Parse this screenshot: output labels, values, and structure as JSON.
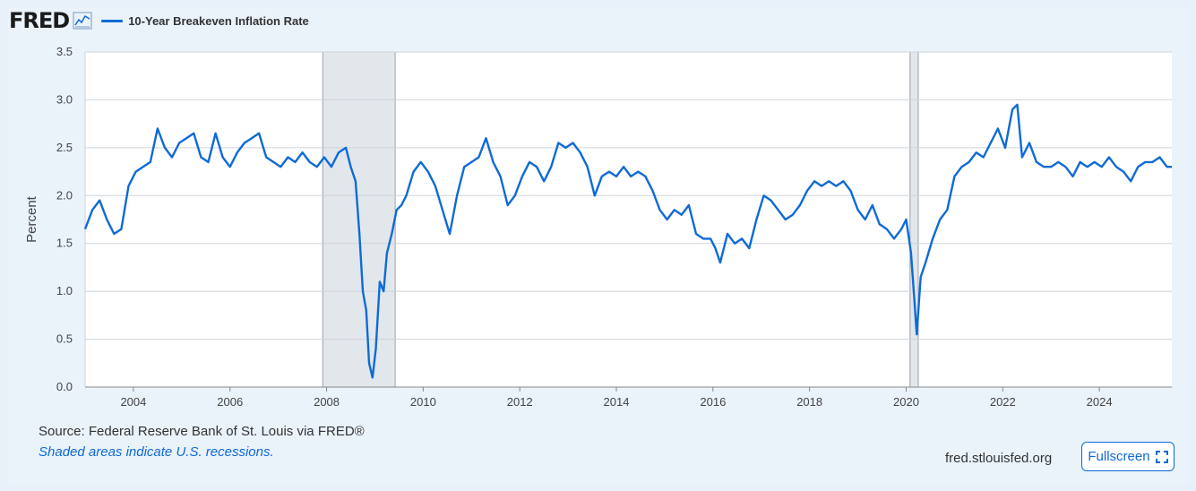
{
  "header": {
    "logo_text": "FRED",
    "legend_label": "10-Year Breakeven Inflation Rate"
  },
  "footer": {
    "source": "Source: Federal Reserve Bank of St. Louis via FRED®",
    "note": "Shaded areas indicate U.S. recessions.",
    "site": "fred.stlouisfed.org",
    "fullscreen_label": "Fullscreen"
  },
  "colors": {
    "series": "#0f6ad6",
    "recession_fill": "#e2e7ec",
    "grid": "#cfd4d8",
    "plot_bg": "#ffffff",
    "page_bg": "#e8f1f9"
  },
  "chart_data": {
    "type": "line",
    "title": "",
    "xlabel": "",
    "ylabel": "Percent",
    "xlim": [
      2003.0,
      2025.5
    ],
    "ylim": [
      0.0,
      3.5
    ],
    "x_ticks": [
      2004,
      2006,
      2008,
      2010,
      2012,
      2014,
      2016,
      2018,
      2020,
      2022,
      2024
    ],
    "y_ticks": [
      "0.0",
      "0.5",
      "1.0",
      "1.5",
      "2.0",
      "2.5",
      "3.0",
      "3.5"
    ],
    "grid": true,
    "legend_position": "top-left",
    "recessions": [
      [
        2007.92,
        2009.42
      ],
      [
        2020.08,
        2020.25
      ]
    ],
    "series": [
      {
        "name": "10-Year Breakeven Inflation Rate",
        "x": [
          2003.0,
          2003.15,
          2003.3,
          2003.45,
          2003.6,
          2003.75,
          2003.9,
          2004.05,
          2004.2,
          2004.35,
          2004.5,
          2004.65,
          2004.8,
          2004.95,
          2005.1,
          2005.25,
          2005.4,
          2005.55,
          2005.7,
          2005.85,
          2006.0,
          2006.15,
          2006.3,
          2006.45,
          2006.6,
          2006.75,
          2006.9,
          2007.05,
          2007.2,
          2007.35,
          2007.5,
          2007.65,
          2007.8,
          2007.95,
          2008.1,
          2008.25,
          2008.4,
          2008.5,
          2008.6,
          2008.68,
          2008.75,
          2008.82,
          2008.88,
          2008.95,
          2009.02,
          2009.1,
          2009.18,
          2009.25,
          2009.35,
          2009.45,
          2009.55,
          2009.65,
          2009.8,
          2009.95,
          2010.1,
          2010.25,
          2010.4,
          2010.55,
          2010.7,
          2010.85,
          2011.0,
          2011.15,
          2011.3,
          2011.45,
          2011.6,
          2011.75,
          2011.9,
          2012.05,
          2012.2,
          2012.35,
          2012.5,
          2012.65,
          2012.8,
          2012.95,
          2013.1,
          2013.25,
          2013.4,
          2013.55,
          2013.7,
          2013.85,
          2014.0,
          2014.15,
          2014.3,
          2014.45,
          2014.6,
          2014.75,
          2014.9,
          2015.05,
          2015.2,
          2015.35,
          2015.5,
          2015.65,
          2015.8,
          2015.95,
          2016.05,
          2016.15,
          2016.3,
          2016.45,
          2016.6,
          2016.75,
          2016.9,
          2017.05,
          2017.2,
          2017.35,
          2017.5,
          2017.65,
          2017.8,
          2017.95,
          2018.1,
          2018.25,
          2018.4,
          2018.55,
          2018.7,
          2018.85,
          2019.0,
          2019.15,
          2019.3,
          2019.45,
          2019.6,
          2019.75,
          2019.9,
          2020.0,
          2020.1,
          2020.17,
          2020.22,
          2020.3,
          2020.4,
          2020.55,
          2020.7,
          2020.85,
          2021.0,
          2021.15,
          2021.3,
          2021.45,
          2021.6,
          2021.75,
          2021.9,
          2022.05,
          2022.2,
          2022.3,
          2022.4,
          2022.55,
          2022.7,
          2022.85,
          2023.0,
          2023.15,
          2023.3,
          2023.45,
          2023.6,
          2023.75,
          2023.9,
          2024.05,
          2024.2,
          2024.35,
          2024.5,
          2024.65,
          2024.8,
          2024.95,
          2025.1,
          2025.25,
          2025.4,
          2025.5
        ],
        "values": [
          1.65,
          1.85,
          1.95,
          1.75,
          1.6,
          1.65,
          2.1,
          2.25,
          2.3,
          2.35,
          2.7,
          2.5,
          2.4,
          2.55,
          2.6,
          2.65,
          2.4,
          2.35,
          2.65,
          2.4,
          2.3,
          2.45,
          2.55,
          2.6,
          2.65,
          2.4,
          2.35,
          2.3,
          2.4,
          2.35,
          2.45,
          2.35,
          2.3,
          2.4,
          2.3,
          2.45,
          2.5,
          2.3,
          2.15,
          1.6,
          1.0,
          0.8,
          0.25,
          0.1,
          0.4,
          1.1,
          1.0,
          1.4,
          1.6,
          1.85,
          1.9,
          2.0,
          2.25,
          2.35,
          2.25,
          2.1,
          1.85,
          1.6,
          2.0,
          2.3,
          2.35,
          2.4,
          2.6,
          2.35,
          2.2,
          1.9,
          2.0,
          2.2,
          2.35,
          2.3,
          2.15,
          2.3,
          2.55,
          2.5,
          2.55,
          2.45,
          2.3,
          2.0,
          2.2,
          2.25,
          2.2,
          2.3,
          2.2,
          2.25,
          2.2,
          2.05,
          1.85,
          1.75,
          1.85,
          1.8,
          1.9,
          1.6,
          1.55,
          1.55,
          1.45,
          1.3,
          1.6,
          1.5,
          1.55,
          1.45,
          1.75,
          2.0,
          1.95,
          1.85,
          1.75,
          1.8,
          1.9,
          2.05,
          2.15,
          2.1,
          2.15,
          2.1,
          2.15,
          2.05,
          1.85,
          1.75,
          1.9,
          1.7,
          1.65,
          1.55,
          1.65,
          1.75,
          1.4,
          0.9,
          0.55,
          1.15,
          1.3,
          1.55,
          1.75,
          1.85,
          2.2,
          2.3,
          2.35,
          2.45,
          2.4,
          2.55,
          2.7,
          2.5,
          2.9,
          2.95,
          2.4,
          2.55,
          2.35,
          2.3,
          2.3,
          2.35,
          2.3,
          2.2,
          2.35,
          2.3,
          2.35,
          2.3,
          2.4,
          2.3,
          2.25,
          2.15,
          2.3,
          2.35,
          2.35,
          2.4,
          2.3,
          2.3
        ]
      }
    ]
  }
}
